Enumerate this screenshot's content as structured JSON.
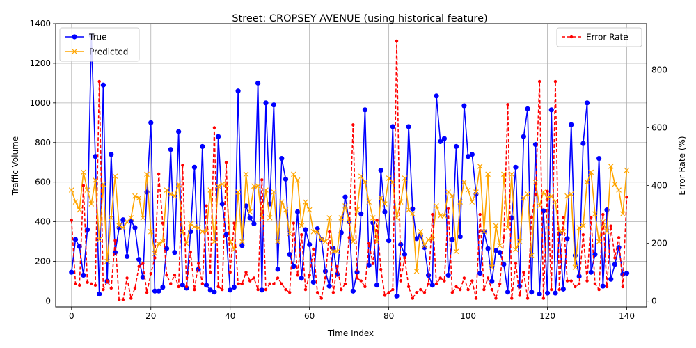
{
  "chart_data": {
    "type": "line",
    "title": "Street: CROPSEY AVENUE (using historical feature)",
    "xlabel": "Time Index",
    "ylabel_left": "Traffic Volume",
    "ylabel_right": "Error Rate (%)",
    "xlim": [
      -4,
      145
    ],
    "ylim_left": [
      -30,
      1400
    ],
    "ylim_right": [
      -20,
      960
    ],
    "xticks": [
      0,
      20,
      40,
      60,
      80,
      100,
      120,
      140
    ],
    "yticks_left": [
      0,
      200,
      400,
      600,
      800,
      1000,
      1200,
      1400
    ],
    "yticks_right": [
      0,
      200,
      400,
      600,
      800
    ],
    "grid": true,
    "legend_left_position": "upper-left",
    "legend_right_position": "upper-right",
    "x": [
      0,
      1,
      2,
      3,
      4,
      5,
      6,
      7,
      8,
      9,
      10,
      11,
      12,
      13,
      14,
      15,
      16,
      17,
      18,
      19,
      20,
      21,
      22,
      23,
      24,
      25,
      26,
      27,
      28,
      29,
      30,
      31,
      32,
      33,
      34,
      35,
      36,
      37,
      38,
      39,
      40,
      41,
      42,
      43,
      44,
      45,
      46,
      47,
      48,
      49,
      50,
      51,
      52,
      53,
      54,
      55,
      56,
      57,
      58,
      59,
      60,
      61,
      62,
      63,
      64,
      65,
      66,
      67,
      68,
      69,
      70,
      71,
      72,
      73,
      74,
      75,
      76,
      77,
      78,
      79,
      80,
      81,
      82,
      83,
      84,
      85,
      86,
      87,
      88,
      89,
      90,
      91,
      92,
      93,
      94,
      95,
      96,
      97,
      98,
      99,
      100,
      101,
      102,
      103,
      104,
      105,
      106,
      107,
      108,
      109,
      110,
      111,
      112,
      113,
      114,
      115,
      116,
      117,
      118,
      119,
      120,
      121,
      122,
      123,
      124,
      125,
      126,
      127,
      128,
      129,
      130,
      131,
      132,
      133,
      134,
      135,
      136,
      137,
      138,
      139,
      140
    ],
    "series": [
      {
        "name": "True",
        "axis": "left",
        "color": "#0000ff",
        "marker": "circle",
        "linestyle": "solid",
        "values": [
          145,
          310,
          275,
          130,
          360,
          1340,
          730,
          35,
          1090,
          100,
          740,
          245,
          370,
          410,
          225,
          405,
          370,
          210,
          120,
          550,
          900,
          50,
          50,
          70,
          265,
          765,
          245,
          855,
          80,
          65,
          350,
          675,
          160,
          780,
          80,
          55,
          45,
          830,
          490,
          335,
          55,
          70,
          1060,
          280,
          480,
          420,
          390,
          1100,
          55,
          1000,
          490,
          990,
          160,
          720,
          615,
          235,
          175,
          450,
          115,
          360,
          285,
          95,
          365,
          310,
          150,
          75,
          265,
          135,
          345,
          525,
          400,
          50,
          145,
          440,
          965,
          180,
          395,
          80,
          660,
          450,
          305,
          880,
          25,
          285,
          235,
          880,
          465,
          315,
          330,
          270,
          130,
          80,
          1035,
          805,
          820,
          130,
          310,
          780,
          325,
          985,
          730,
          740,
          540,
          140,
          350,
          265,
          100,
          255,
          245,
          185,
          45,
          420,
          675,
          75,
          830,
          970,
          45,
          790,
          35,
          455,
          40,
          965,
          40,
          340,
          60,
          315,
          890,
          230,
          125,
          795,
          1000,
          145,
          235,
          720,
          75,
          460,
          110,
          185,
          270,
          135,
          140
        ]
      },
      {
        "name": "Predicted",
        "axis": "left",
        "color": "#ffa500",
        "marker": "x",
        "linestyle": "solid",
        "values": [
          560,
          500,
          460,
          650,
          560,
          490,
          610,
          310,
          590,
          200,
          420,
          630,
          380,
          370,
          400,
          420,
          530,
          520,
          420,
          640,
          350,
          240,
          290,
          300,
          560,
          540,
          530,
          590,
          350,
          290,
          390,
          375,
          370,
          350,
          350,
          560,
          300,
          580,
          590,
          590,
          300,
          260,
          550,
          300,
          640,
          450,
          580,
          580,
          420,
          560,
          420,
          550,
          300,
          500,
          460,
          340,
          640,
          610,
          380,
          500,
          460,
          350,
          350,
          310,
          300,
          420,
          250,
          250,
          420,
          480,
          400,
          300,
          460,
          630,
          600,
          500,
          420,
          300,
          520,
          490,
          620,
          600,
          420,
          500,
          620,
          460,
          440,
          150,
          350,
          280,
          310,
          310,
          480,
          430,
          430,
          550,
          530,
          250,
          500,
          600,
          560,
          500,
          550,
          680,
          350,
          640,
          170,
          380,
          280,
          640,
          370,
          640,
          260,
          300,
          520,
          540,
          230,
          600,
          480,
          550,
          520,
          530,
          500,
          350,
          350,
          530,
          540,
          170,
          370,
          380,
          600,
          650,
          440,
          300,
          400,
          350,
          680,
          590,
          560,
          440,
          660
        ]
      },
      {
        "name": "Error Rate",
        "axis": "right",
        "color": "#ff0000",
        "marker": "dot",
        "linestyle": "dashed",
        "values": [
          280,
          60,
          55,
          400,
          65,
          60,
          55,
          760,
          40,
          70,
          45,
          210,
          5,
          5,
          80,
          10,
          45,
          120,
          130,
          30,
          95,
          150,
          440,
          270,
          90,
          60,
          90,
          50,
          470,
          50,
          170,
          40,
          130,
          60,
          330,
          100,
          600,
          50,
          40,
          480,
          100,
          270,
          60,
          60,
          100,
          70,
          80,
          40,
          420,
          40,
          60,
          60,
          80,
          60,
          40,
          30,
          270,
          90,
          230,
          40,
          90,
          180,
          30,
          10,
          80,
          240,
          30,
          120,
          40,
          60,
          220,
          610,
          80,
          70,
          50,
          200,
          130,
          280,
          110,
          20,
          30,
          40,
          900,
          70,
          150,
          50,
          10,
          30,
          40,
          30,
          60,
          300,
          60,
          80,
          70,
          320,
          30,
          50,
          40,
          80,
          40,
          70,
          10,
          300,
          40,
          80,
          40,
          10,
          60,
          220,
          680,
          10,
          130,
          20,
          100,
          10,
          290,
          370,
          760,
          10,
          380,
          40,
          760,
          40,
          290,
          70,
          70,
          50,
          60,
          230,
          70,
          290,
          60,
          40,
          300,
          50,
          260,
          150,
          220,
          50,
          360
        ]
      }
    ]
  }
}
